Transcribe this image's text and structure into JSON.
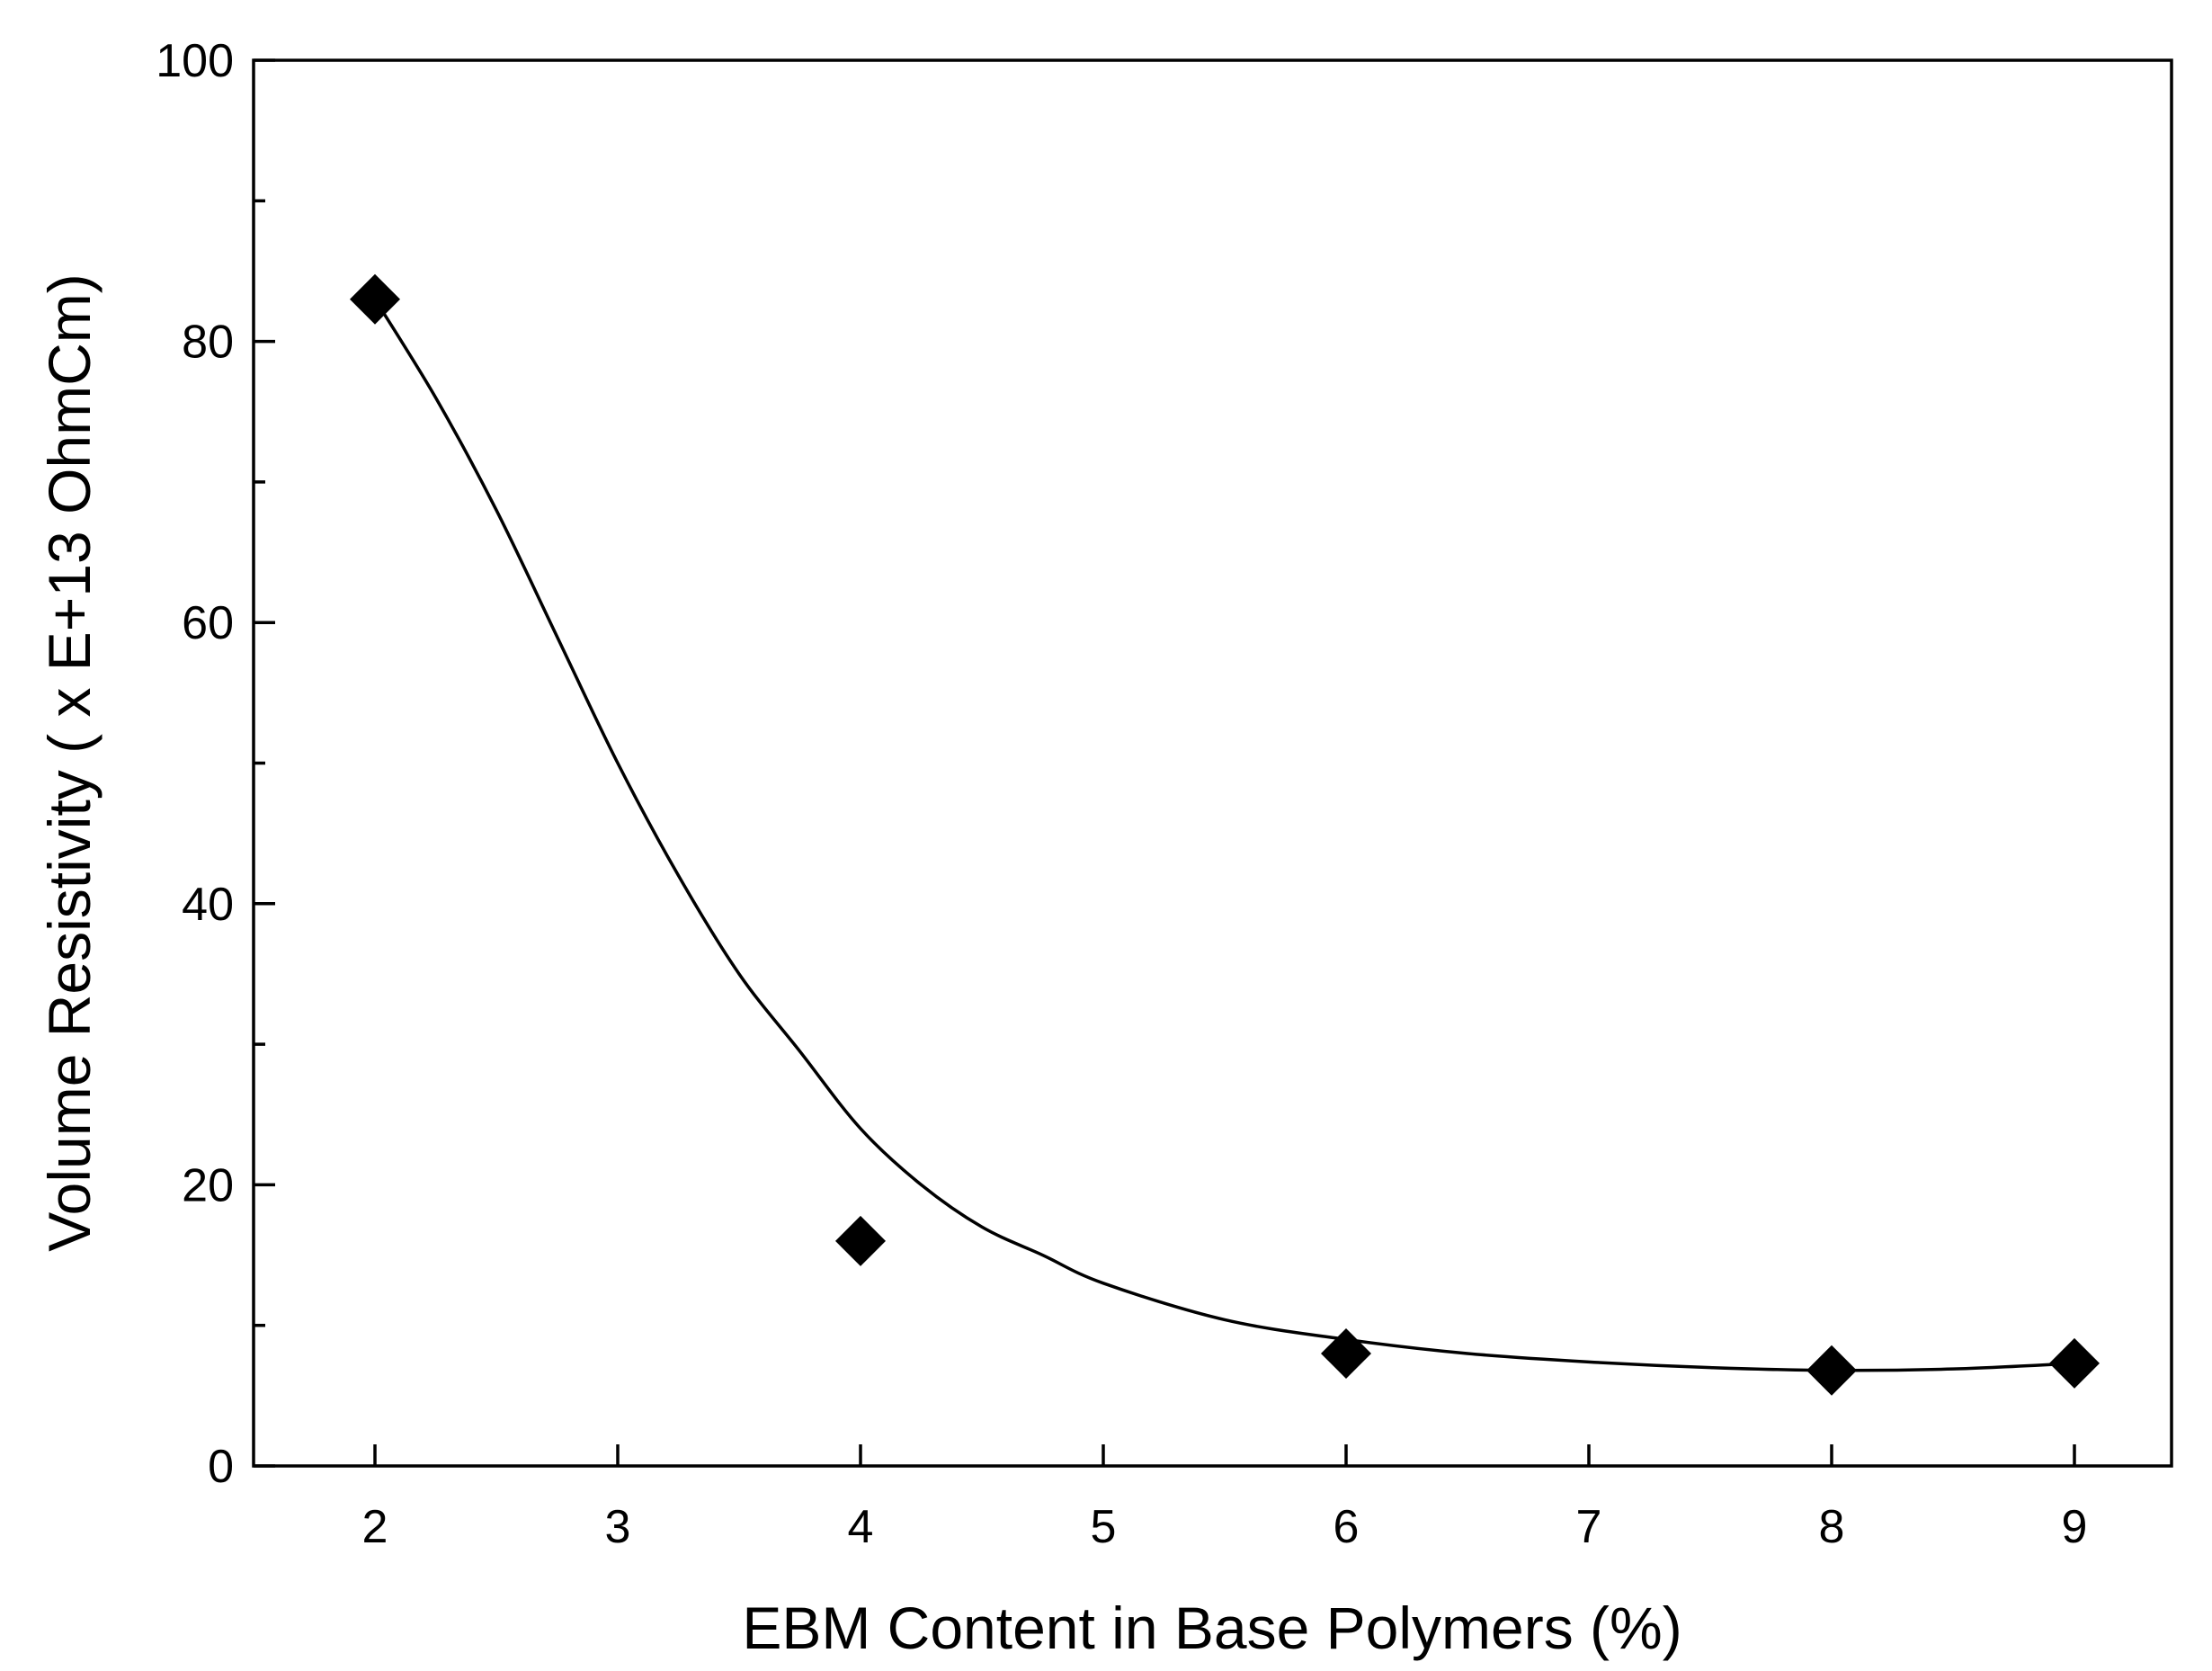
{
  "chart_data": {
    "type": "scatter",
    "xlabel": "EBM Content in Base Polymers (%)",
    "ylabel": "Volume Resistivity ( x E+13 OhmCm)",
    "xlim": [
      1.5,
      9.4
    ],
    "ylim": [
      0,
      100
    ],
    "x_ticks": [
      2,
      3,
      4,
      5,
      6,
      7,
      8,
      9
    ],
    "y_ticks": [
      0,
      20,
      40,
      60,
      80,
      100
    ],
    "y_minor_ticks": [
      10,
      30,
      50,
      70,
      90
    ],
    "grid": false,
    "legend": "none",
    "series": [
      {
        "marker": "diamond",
        "color": "#000000",
        "x": [
          2,
          4,
          6,
          8,
          9
        ],
        "y": [
          83,
          16,
          8,
          6.8,
          7.3
        ]
      }
    ],
    "fit_curve": {
      "x": [
        2.0,
        2.25,
        2.5,
        2.75,
        3.0,
        3.25,
        3.5,
        3.75,
        4.0,
        4.25,
        4.5,
        4.75,
        5.0,
        5.5,
        6.0,
        6.5,
        7.0,
        7.5,
        8.0,
        8.5,
        9.0
      ],
      "y": [
        83,
        76,
        68,
        59,
        50,
        42,
        35,
        29.5,
        24,
        20,
        17,
        15,
        13,
        10.4,
        9,
        8,
        7.4,
        7.0,
        6.8,
        6.9,
        7.3
      ]
    }
  }
}
